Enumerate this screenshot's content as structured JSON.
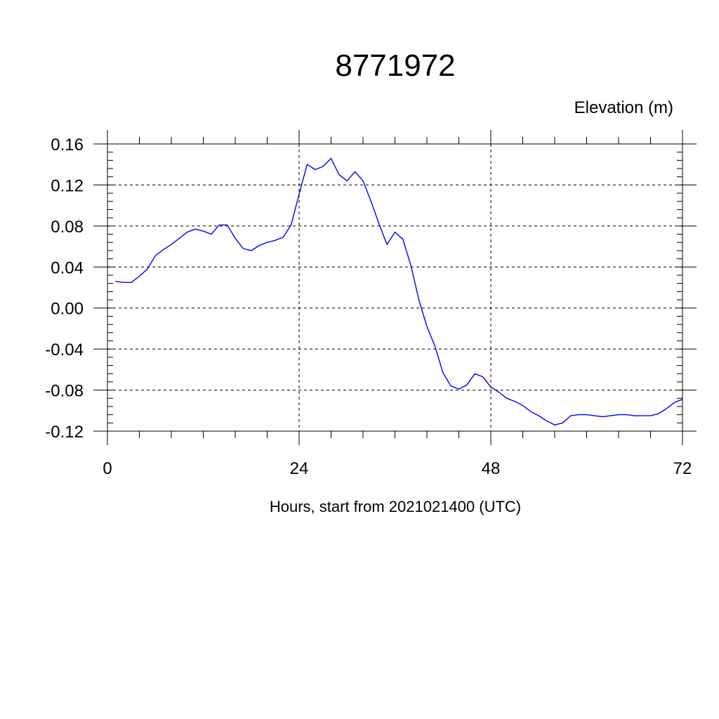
{
  "chart_data": {
    "type": "line",
    "title": "8771972",
    "ylabel": "Elevation (m)",
    "xlabel": "Hours, start from 2021021400 (UTC)",
    "xlim": [
      0,
      72
    ],
    "ylim": [
      -0.12,
      0.16
    ],
    "x_ticks": [
      0,
      24,
      48,
      72
    ],
    "x_tick_labels": [
      "0",
      "24",
      "48",
      "72"
    ],
    "y_ticks": [
      -0.12,
      -0.08,
      -0.04,
      0.0,
      0.04,
      0.08,
      0.12,
      0.16
    ],
    "y_tick_labels": [
      "-0.12",
      "-0.08",
      "-0.04",
      "0.00",
      "0.04",
      "0.08",
      "0.12",
      "0.16"
    ],
    "grid": true,
    "series": [
      {
        "color": "#0000ff",
        "x": [
          1,
          2,
          3,
          4,
          5,
          6,
          7,
          8,
          9,
          10,
          11,
          12,
          13,
          14,
          15,
          16,
          17,
          18,
          19,
          20,
          21,
          22,
          23,
          24,
          25,
          26,
          27,
          28,
          29,
          30,
          31,
          32,
          33,
          34,
          35,
          36,
          37,
          38,
          39,
          40,
          41,
          42,
          43,
          44,
          45,
          46,
          47,
          48,
          49,
          50,
          51,
          52,
          53,
          54,
          55,
          56,
          57,
          58,
          59,
          60,
          61,
          62,
          63,
          64,
          65,
          66,
          67,
          68,
          69,
          70,
          71,
          72
        ],
        "values": [
          0.026,
          0.025,
          0.025,
          0.031,
          0.038,
          0.051,
          0.057,
          0.062,
          0.068,
          0.074,
          0.077,
          0.075,
          0.072,
          0.081,
          0.081,
          0.068,
          0.058,
          0.056,
          0.061,
          0.064,
          0.066,
          0.069,
          0.081,
          0.111,
          0.14,
          0.135,
          0.138,
          0.146,
          0.13,
          0.124,
          0.133,
          0.124,
          0.104,
          0.082,
          0.062,
          0.074,
          0.067,
          0.041,
          0.008,
          -0.018,
          -0.037,
          -0.063,
          -0.076,
          -0.079,
          -0.075,
          -0.064,
          -0.067,
          -0.077,
          -0.082,
          -0.088,
          -0.091,
          -0.095,
          -0.101,
          -0.105,
          -0.11,
          -0.114,
          -0.112,
          -0.105,
          -0.104,
          -0.104,
          -0.105,
          -0.106,
          -0.105,
          -0.104,
          -0.104,
          -0.105,
          -0.105,
          -0.105,
          -0.103,
          -0.098,
          -0.092,
          -0.089
        ]
      }
    ]
  }
}
